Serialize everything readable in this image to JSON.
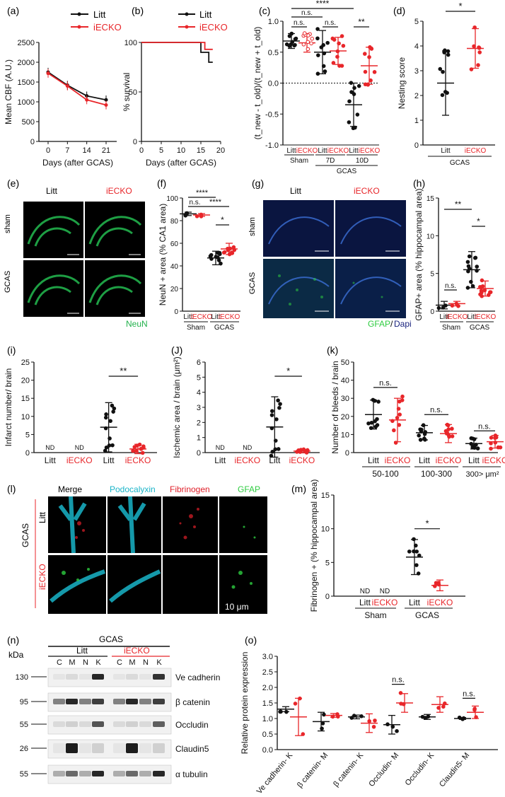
{
  "colors": {
    "litt": "#111111",
    "iecko": "#e8262a",
    "neun": "#22b14c",
    "gfap": "#2ecc40",
    "dapi": "#1a237e",
    "podocalyxin": "#19b4c8",
    "fibrinogen": "#e0202a"
  },
  "labels": {
    "litt": "Litt",
    "iecko": "iECKO",
    "sham": "Sham",
    "gcas": "GCAS",
    "nd": "ND",
    "ns": "n.s.",
    "s1": "*",
    "s2": "**",
    "s4": "****",
    "d7": "7D",
    "d10": "10D",
    "kda": "kDa",
    "ten_um": "10 μm",
    "sham_lower": "sham",
    "neun": "NeuN",
    "gfap": "GFAP",
    "slash": "/",
    "dapi": "Dapi",
    "merge": "Merge",
    "podocalyxin": "Podocalyxin",
    "fibrinogen": "Fibrinogen"
  },
  "panels": {
    "a": "(a)",
    "b": "(b)",
    "c": "(c)",
    "d": "(d)",
    "e": "(e)",
    "f": "(f)",
    "g": "(g)",
    "h": "(h)",
    "i": "(i)",
    "j": "(J)",
    "k": "(k)",
    "l": "(l)",
    "m": "(m)",
    "n": "(n)",
    "o": "(o)"
  },
  "chart_data": [
    {
      "id": "a",
      "type": "line",
      "xlabel": "Days (after GCAS)",
      "ylabel": "Mean CBF (A.U.)",
      "x": [
        0,
        7,
        14,
        21
      ],
      "ylim": [
        0,
        2500
      ],
      "yticks": [
        0,
        500,
        1000,
        1500,
        2000,
        2500
      ],
      "series": [
        {
          "name": "Litt",
          "values": [
            1750,
            1420,
            1150,
            1050
          ]
        },
        {
          "name": "iECKO",
          "values": [
            1720,
            1400,
            1050,
            920
          ]
        }
      ]
    },
    {
      "id": "b",
      "type": "line",
      "xlabel": "Days (after GCAS)",
      "ylabel": "% survival",
      "xlim": [
        0,
        20
      ],
      "xticks": [
        0,
        5,
        10,
        15,
        20
      ],
      "ylim": [
        0,
        100
      ],
      "yticks": [
        0,
        50,
        100
      ],
      "series": [
        {
          "name": "Litt",
          "values": [
            [
              0,
              100
            ],
            [
              15,
              100
            ],
            [
              15,
              90
            ],
            [
              17,
              90
            ],
            [
              17,
              80
            ],
            [
              18,
              80
            ]
          ]
        },
        {
          "name": "iECKO",
          "values": [
            [
              0,
              100
            ],
            [
              16,
              100
            ],
            [
              16,
              93
            ],
            [
              18,
              93
            ]
          ]
        }
      ]
    },
    {
      "id": "c",
      "type": "scatter",
      "ylabel": "(t_new - t_old)/(t_new + t_old)",
      "ylim": [
        -1,
        1
      ],
      "yticks": [
        -1.0,
        -0.5,
        0.0,
        0.5,
        1.0
      ],
      "categories": [
        "Litt",
        "iECKO",
        "Litt",
        "iECKO",
        "Litt",
        "iECKO"
      ],
      "groups": [
        "Sham",
        "7D",
        "10D"
      ],
      "supergroup": "GCAS",
      "means": [
        0.68,
        0.65,
        0.5,
        0.52,
        -0.35,
        0.28
      ]
    },
    {
      "id": "d",
      "type": "scatter",
      "ylabel": "Nesting score",
      "ylim": [
        0,
        5
      ],
      "yticks": [
        0,
        1,
        2,
        3,
        4,
        5
      ],
      "categories": [
        "Litt",
        "iECKO"
      ],
      "group": "GCAS",
      "means": [
        2.5,
        3.9
      ]
    },
    {
      "id": "f",
      "type": "scatter",
      "ylabel": "NeuN + area (% CA1 area)",
      "ylim": [
        0,
        100
      ],
      "yticks": [
        0,
        20,
        40,
        60,
        80,
        100
      ],
      "categories": [
        "Litt",
        "iECKO",
        "Litt",
        "iECKO"
      ],
      "groups": [
        "Sham",
        "GCAS"
      ],
      "means": [
        86,
        85,
        47,
        55
      ]
    },
    {
      "id": "h",
      "type": "scatter",
      "ylabel": "GFAP+ area (% hippocampal area)",
      "ylim": [
        0,
        15
      ],
      "yticks": [
        0,
        5,
        10,
        15
      ],
      "categories": [
        "Litt",
        "iECKO",
        "Litt",
        "iECKO"
      ],
      "groups": [
        "Sham",
        "GCAS"
      ],
      "means": [
        0.8,
        1.0,
        5.5,
        3.0
      ]
    },
    {
      "id": "i",
      "type": "scatter",
      "ylabel": "Infarct number/ brain",
      "ylim": [
        0,
        25
      ],
      "yticks": [
        0,
        5,
        10,
        15,
        20,
        25
      ],
      "categories": [
        "Litt",
        "iECKO",
        "Litt",
        "iECKO"
      ],
      "means": [
        0,
        0,
        7,
        1
      ]
    },
    {
      "id": "j",
      "type": "scatter",
      "ylabel": "Ischemic area / brain (μm²)",
      "ylim": [
        0,
        6
      ],
      "yticks": [
        0,
        1,
        2,
        3,
        4,
        5,
        6
      ],
      "categories": [
        "Litt",
        "iECKO",
        "Litt",
        "iECKO"
      ],
      "means": [
        0,
        0,
        1.7,
        0.1
      ]
    },
    {
      "id": "k",
      "type": "scatter",
      "ylabel": "Number of bleeds / brain",
      "ylim": [
        0,
        50
      ],
      "yticks": [
        0,
        10,
        20,
        30,
        40,
        50
      ],
      "categories": [
        "Litt",
        "iECKO",
        "Litt",
        "iECKO",
        "Litt",
        "iECKO"
      ],
      "groups": [
        "50-100",
        "100-300",
        "300> μm²"
      ],
      "means": [
        21,
        18,
        11,
        10.5,
        5,
        6
      ]
    },
    {
      "id": "m",
      "type": "scatter",
      "ylabel": "Fibrinogen + (% hippocampal area)",
      "ylim": [
        0,
        15
      ],
      "yticks": [
        0,
        5,
        10,
        15
      ],
      "categories": [
        "Litt",
        "iECKO",
        "Litt",
        "iECKO"
      ],
      "groups": [
        "Sham",
        "GCAS"
      ],
      "means": [
        0,
        0,
        5.8,
        1.6
      ]
    },
    {
      "id": "o",
      "type": "scatter",
      "ylabel": "Relative protein expression",
      "ylim": [
        0,
        3
      ],
      "yticks": [
        0.0,
        0.5,
        1.0,
        1.5,
        2.0,
        2.5,
        3.0
      ],
      "categories": [
        "Ve cadherin- K",
        "β catenin- M",
        "β catenin- K",
        "Occludin- M",
        "Occludin- K",
        "Claudin5- M"
      ],
      "series": [
        {
          "name": "Litt",
          "values": [
            1.3,
            0.9,
            1.05,
            0.8,
            1.05,
            1.0
          ]
        },
        {
          "name": "iECKO",
          "values": [
            1.05,
            1.1,
            0.85,
            1.5,
            1.45,
            1.2
          ]
        }
      ]
    }
  ],
  "blot": {
    "title": "GCAS",
    "groups": [
      "Litt",
      "iECKO"
    ],
    "lanes": [
      "C",
      "M",
      "N",
      "K",
      "C",
      "M",
      "N",
      "K"
    ],
    "rows": [
      {
        "kda": "130",
        "protein": "Ve cadherin"
      },
      {
        "kda": "95",
        "protein": "β catenin"
      },
      {
        "kda": "55",
        "protein": "Occludin"
      },
      {
        "kda": "26",
        "protein": "Claudin5"
      },
      {
        "kda": "55",
        "protein": "α tubulin"
      }
    ]
  }
}
